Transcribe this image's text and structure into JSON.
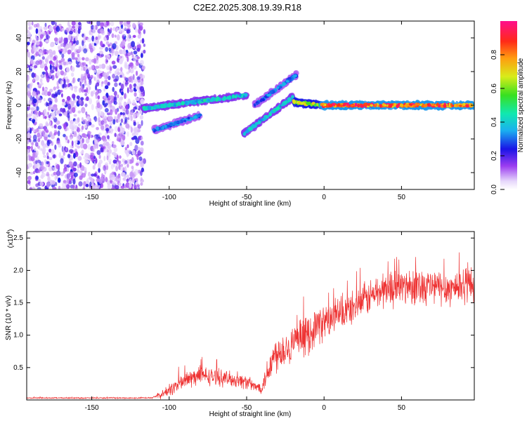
{
  "title": "C2E2.2025.308.19.39.R18",
  "chart_data": [
    {
      "type": "heatmap",
      "name": "spectrogram",
      "xlabel": "Height of straight line (km)",
      "ylabel": "Frequency (Hz)",
      "xlim": [
        -192,
        97
      ],
      "ylim": [
        -50,
        50
      ],
      "xticks": [
        -150,
        -100,
        -50,
        0,
        50
      ],
      "yticks": [
        -40,
        -20,
        0,
        20,
        40
      ],
      "colorbar": {
        "label": "Normalized spectral amplitude",
        "range": [
          0,
          1
        ],
        "ticks": [
          "0.0",
          "0.2",
          "0.4",
          "0.6",
          "0.8"
        ]
      },
      "regions": [
        {
          "kind": "noise",
          "x": [
            -192,
            -116
          ],
          "y": [
            -50,
            50
          ],
          "amplitude": [
            0.05,
            0.25
          ]
        },
        {
          "kind": "track",
          "x": [
            -117,
            -50
          ],
          "y": [
            -2,
            6
          ],
          "amplitude": 0.45
        },
        {
          "kind": "track",
          "x": [
            -110,
            -80
          ],
          "y": [
            -15,
            -6
          ],
          "amplitude": 0.35
        },
        {
          "kind": "track",
          "x": [
            -52,
            -20
          ],
          "y": [
            -17,
            5
          ],
          "amplitude": 0.45
        },
        {
          "kind": "track",
          "x": [
            -45,
            -18
          ],
          "y": [
            0,
            18
          ],
          "amplitude": 0.35
        },
        {
          "kind": "track",
          "x": [
            -20,
            -2
          ],
          "y": [
            2,
            0
          ],
          "amplitude": 0.7
        },
        {
          "kind": "track",
          "x": [
            -2,
            97
          ],
          "y": [
            0,
            0
          ],
          "amplitude": 0.95
        }
      ]
    },
    {
      "type": "line",
      "name": "snr",
      "xlabel": "Height of straight line (km)",
      "ylabel": "SNR (10 * v/v)",
      "yscale_label": "(x10",
      "yscale_exp": "4",
      "xlim": [
        -192,
        97
      ],
      "ylim": [
        0,
        2.6
      ],
      "xticks": [
        -150,
        -100,
        -50,
        0,
        50
      ],
      "yticks": [
        "0.5",
        "1.0",
        "1.5",
        "2.0",
        "2.5"
      ],
      "color": "#ee3333",
      "envelope": {
        "x": [
          -192,
          -112,
          -105,
          -100,
          -90,
          -80,
          -70,
          -60,
          -50,
          -45,
          -40,
          -35,
          -30,
          -25,
          -20,
          -15,
          -10,
          -5,
          0,
          10,
          20,
          30,
          40,
          50,
          60,
          70,
          80,
          90,
          97
        ],
        "mean": [
          0.03,
          0.03,
          0.08,
          0.15,
          0.3,
          0.38,
          0.35,
          0.32,
          0.28,
          0.2,
          0.2,
          0.55,
          0.75,
          0.8,
          0.85,
          0.95,
          1.0,
          1.15,
          1.2,
          1.3,
          1.45,
          1.6,
          1.72,
          1.75,
          1.78,
          1.75,
          1.72,
          1.78,
          1.8
        ],
        "spread": [
          0.01,
          0.01,
          0.06,
          0.1,
          0.15,
          0.15,
          0.13,
          0.12,
          0.12,
          0.08,
          0.1,
          0.3,
          0.3,
          0.3,
          0.28,
          0.3,
          0.3,
          0.3,
          0.28,
          0.28,
          0.25,
          0.28,
          0.3,
          0.3,
          0.3,
          0.3,
          0.28,
          0.3,
          0.3
        ]
      }
    }
  ]
}
